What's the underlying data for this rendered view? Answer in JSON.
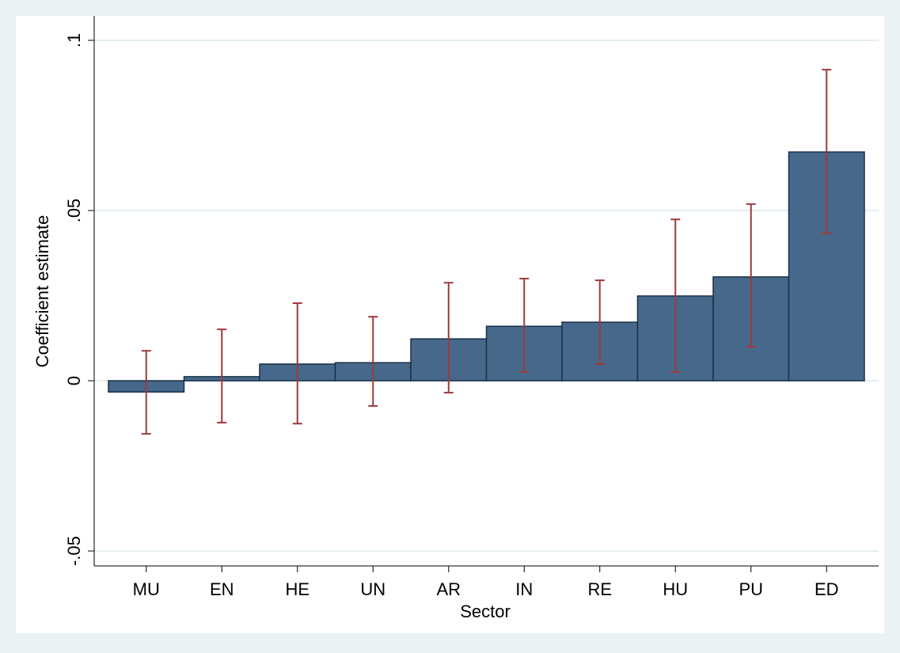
{
  "chart_data": {
    "type": "bar",
    "x_label": "Sector",
    "y_label": "Coefficient estimate",
    "categories": [
      "MU",
      "EN",
      "HE",
      "UN",
      "AR",
      "IN",
      "RE",
      "HU",
      "PU",
      "ED"
    ],
    "values": [
      -0.0033,
      0.0012,
      0.0049,
      0.0053,
      0.0123,
      0.016,
      0.0172,
      0.0249,
      0.0305,
      0.0672
    ],
    "ci_lower": [
      -0.0156,
      -0.0123,
      -0.0126,
      -0.0074,
      -0.0035,
      0.0026,
      0.0049,
      0.0026,
      0.01,
      0.0433
    ],
    "ci_upper": [
      0.0088,
      0.0151,
      0.0228,
      0.0188,
      0.0288,
      0.03,
      0.0295,
      0.0474,
      0.0519,
      0.0914
    ],
    "color": "#46698b",
    "error_color": "#a0393b",
    "ylim": [
      -0.0544,
      0.1072
    ],
    "yticks": [
      {
        "value": -0.05,
        "label": "-.05"
      },
      {
        "value": 0,
        "label": "0"
      },
      {
        "value": 0.05,
        "label": ".05"
      },
      {
        "value": 0.1,
        "label": ".1"
      }
    ],
    "grid": true
  }
}
